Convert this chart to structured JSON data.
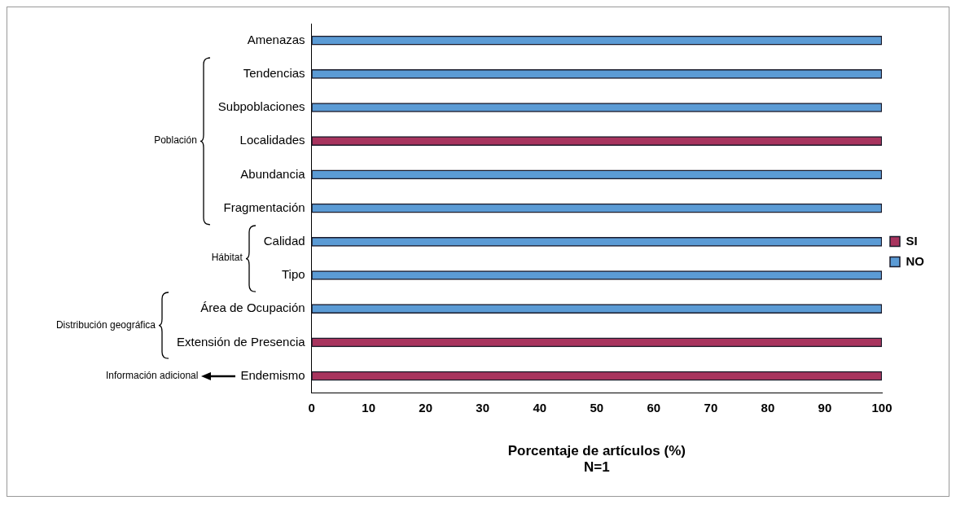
{
  "chart_data": {
    "type": "bar",
    "orientation": "horizontal",
    "stacked": true,
    "categories": [
      "Amenazas",
      "Tendencias",
      "Subpoblaciones",
      "Localidades",
      "Abundancia",
      "Fragmentación",
      "Calidad",
      "Tipo",
      "Área de Ocupación",
      "Extensión de Presencia",
      "Endemismo"
    ],
    "series": [
      {
        "name": "SI",
        "color": "#a8345e",
        "values": [
          0,
          0,
          0,
          100,
          0,
          0,
          0,
          0,
          0,
          100,
          100
        ]
      },
      {
        "name": "NO",
        "color": "#5b9bd5",
        "values": [
          100,
          100,
          100,
          0,
          100,
          100,
          100,
          100,
          100,
          0,
          0
        ]
      }
    ],
    "xlim": [
      0,
      100
    ],
    "xticks": [
      0,
      10,
      20,
      30,
      40,
      50,
      60,
      70,
      80,
      90,
      100
    ],
    "xlabel": "Porcentaje de artículos (%)\nN=1",
    "annotations": [
      "Población",
      "Hábitat",
      "Distribución geográfica",
      "Información adicional"
    ],
    "legend": "right",
    "grid": false
  }
}
